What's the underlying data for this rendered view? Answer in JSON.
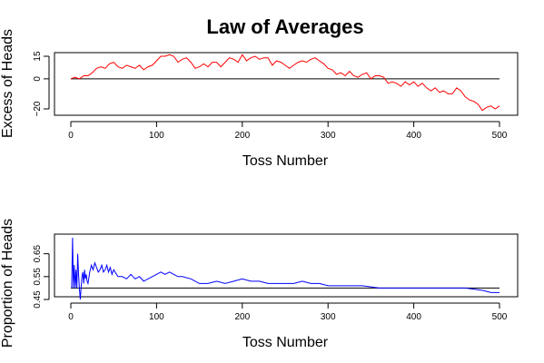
{
  "title": "Law of Averages",
  "chart_data": [
    {
      "type": "line",
      "title": "Law of Averages",
      "xlabel": "Toss Number",
      "ylabel": "Excess of Heads",
      "xlim": [
        0,
        500
      ],
      "ylim": [
        -20,
        15
      ],
      "xticks": [
        0,
        100,
        200,
        300,
        400,
        500
      ],
      "yticks": [
        -20,
        0,
        15
      ],
      "ytick_labels": [
        "−20",
        "0",
        "15"
      ],
      "reference_line": 0,
      "grid": false,
      "series": [
        {
          "color": "#ff0000",
          "x": [
            0,
            5,
            10,
            15,
            20,
            25,
            30,
            35,
            40,
            45,
            50,
            55,
            60,
            65,
            70,
            75,
            80,
            85,
            90,
            95,
            100,
            105,
            110,
            115,
            120,
            125,
            130,
            135,
            140,
            145,
            150,
            155,
            160,
            165,
            170,
            175,
            180,
            185,
            190,
            195,
            200,
            205,
            210,
            215,
            220,
            225,
            230,
            235,
            240,
            245,
            250,
            255,
            260,
            265,
            270,
            275,
            280,
            285,
            290,
            295,
            300,
            305,
            310,
            315,
            320,
            325,
            330,
            335,
            340,
            345,
            350,
            355,
            360,
            365,
            370,
            375,
            380,
            385,
            390,
            395,
            400,
            405,
            410,
            415,
            420,
            425,
            430,
            435,
            440,
            445,
            450,
            455,
            460,
            465,
            470,
            475,
            480,
            485,
            490,
            495,
            500
          ],
          "y": [
            0,
            1,
            0,
            2,
            2,
            4,
            7,
            8,
            7,
            10,
            11,
            8,
            7,
            9,
            8,
            7,
            9,
            6,
            8,
            9,
            12,
            15,
            15,
            16,
            15,
            11,
            13,
            14,
            11,
            7,
            8,
            10,
            8,
            11,
            11,
            8,
            11,
            14,
            13,
            11,
            16,
            12,
            14,
            15,
            13,
            14,
            14,
            9,
            12,
            11,
            9,
            7,
            9,
            11,
            12,
            11,
            13,
            14,
            12,
            10,
            7,
            6,
            3,
            4,
            2,
            5,
            2,
            1,
            3,
            4,
            0,
            2,
            2,
            1,
            -3,
            -2,
            -3,
            -5,
            -2,
            -4,
            -2,
            -5,
            -3,
            -6,
            -8,
            -6,
            -9,
            -8,
            -10,
            -10,
            -6,
            -8,
            -12,
            -14,
            -15,
            -17,
            -21,
            -19,
            -18,
            -20,
            -18
          ]
        }
      ]
    },
    {
      "type": "line",
      "xlabel": "Toss Number",
      "ylabel": "Proportion of Heads",
      "xlim": [
        0,
        500
      ],
      "ylim": [
        0.45,
        0.72
      ],
      "xticks": [
        0,
        100,
        200,
        300,
        400,
        500
      ],
      "yticks": [
        0.45,
        0.55,
        0.65
      ],
      "ytick_labels": [
        "0.45",
        "0.55",
        "0.65"
      ],
      "reference_line": 0.5,
      "grid": false,
      "series": [
        {
          "color": "#0000ff",
          "x": [
            1,
            2,
            3,
            4,
            5,
            6,
            7,
            8,
            9,
            10,
            11,
            12,
            13,
            14,
            15,
            16,
            17,
            18,
            19,
            20,
            22,
            24,
            26,
            28,
            30,
            32,
            34,
            36,
            38,
            40,
            42,
            44,
            46,
            48,
            50,
            55,
            60,
            65,
            70,
            75,
            80,
            85,
            90,
            95,
            100,
            105,
            110,
            115,
            120,
            125,
            130,
            140,
            150,
            160,
            170,
            180,
            190,
            200,
            210,
            220,
            230,
            240,
            250,
            260,
            270,
            280,
            290,
            300,
            320,
            340,
            360,
            380,
            400,
            420,
            440,
            460,
            480,
            490,
            500
          ],
          "y": [
            0.5,
            0.72,
            0.5,
            0.6,
            0.5,
            0.58,
            0.5,
            0.65,
            0.56,
            0.5,
            0.45,
            0.5,
            0.55,
            0.57,
            0.52,
            0.58,
            0.54,
            0.56,
            0.53,
            0.52,
            0.57,
            0.6,
            0.58,
            0.61,
            0.59,
            0.57,
            0.58,
            0.6,
            0.57,
            0.58,
            0.6,
            0.57,
            0.59,
            0.56,
            0.58,
            0.55,
            0.55,
            0.54,
            0.56,
            0.54,
            0.55,
            0.53,
            0.54,
            0.55,
            0.56,
            0.57,
            0.56,
            0.57,
            0.56,
            0.55,
            0.55,
            0.54,
            0.52,
            0.52,
            0.53,
            0.52,
            0.53,
            0.54,
            0.53,
            0.53,
            0.52,
            0.52,
            0.52,
            0.52,
            0.53,
            0.52,
            0.52,
            0.51,
            0.51,
            0.51,
            0.5,
            0.5,
            0.5,
            0.5,
            0.5,
            0.5,
            0.49,
            0.48,
            0.48
          ]
        }
      ]
    }
  ]
}
